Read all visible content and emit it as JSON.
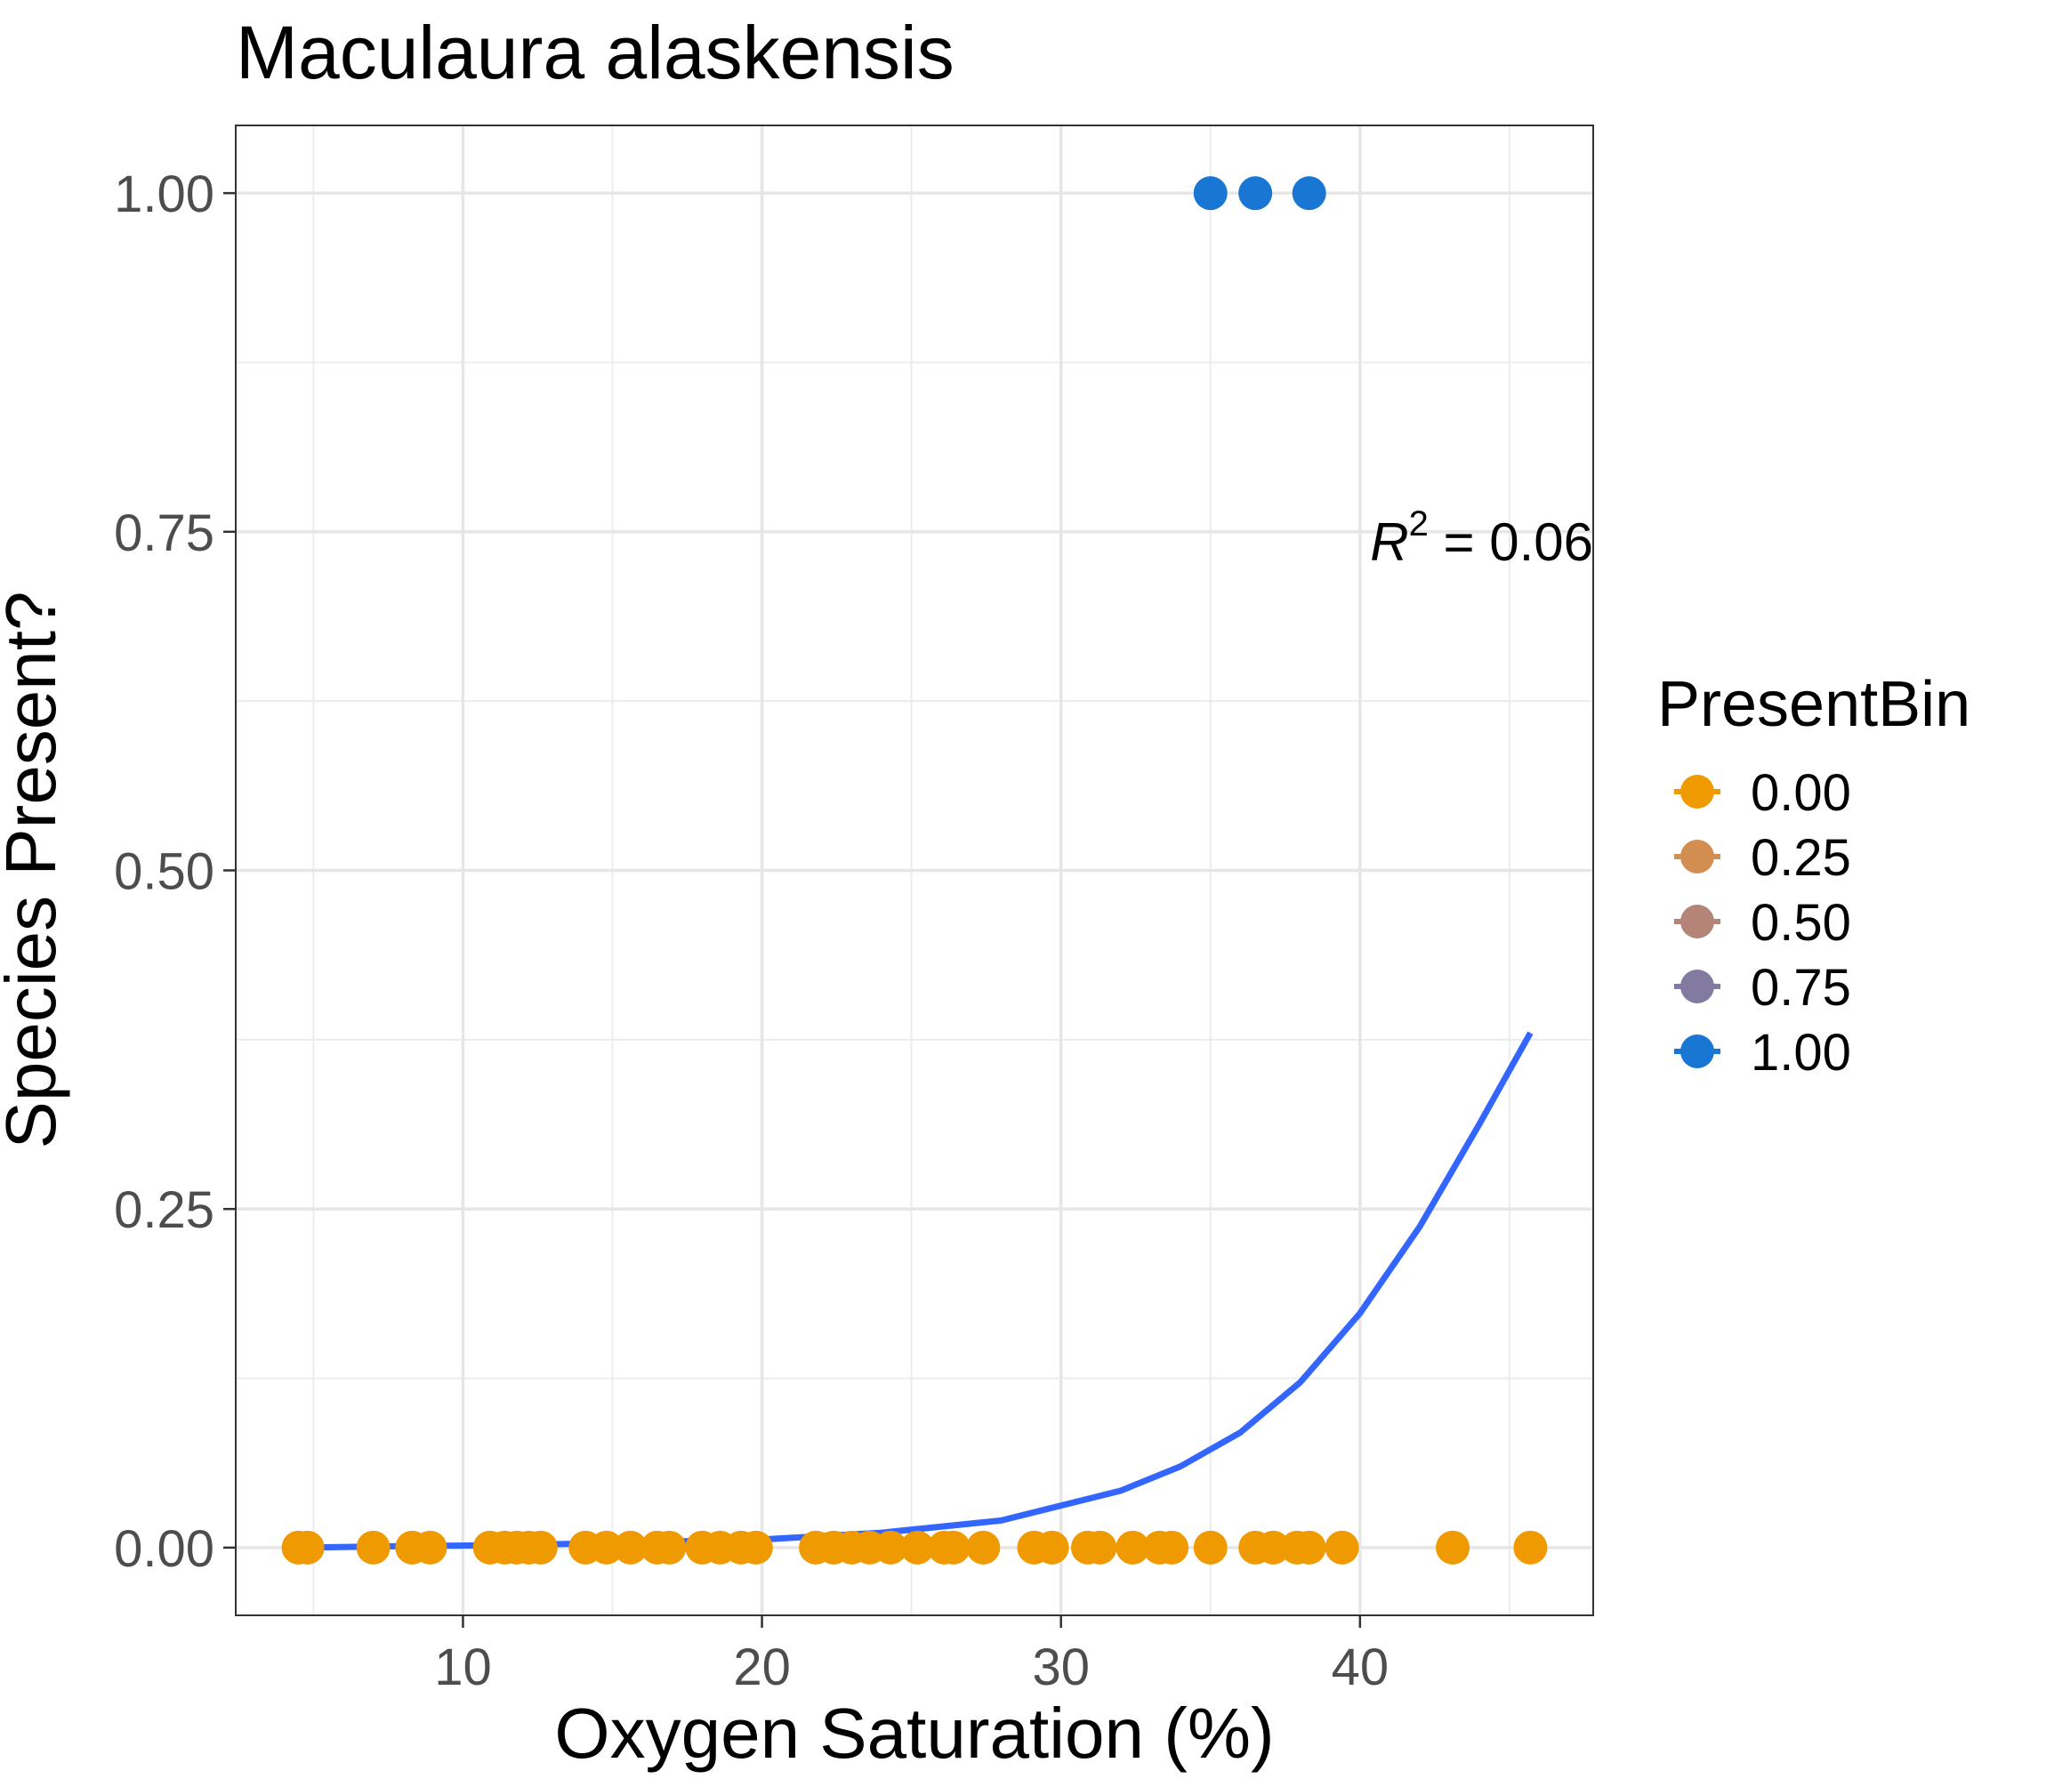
{
  "chart_data": {
    "type": "scatter",
    "title": "Maculaura alaskensis",
    "xlabel": "Oxygen Saturation (%)",
    "ylabel": "Species Present?",
    "xlim": [
      2.4,
      47.8
    ],
    "ylim": [
      -0.05,
      1.05
    ],
    "x_ticks": [
      10,
      20,
      30,
      40
    ],
    "y_ticks": [
      0.0,
      0.25,
      0.5,
      0.75,
      1.0
    ],
    "x_tick_labels": [
      "10",
      "20",
      "30",
      "40"
    ],
    "y_tick_labels": [
      "0.00",
      "0.25",
      "0.50",
      "0.75",
      "1.00"
    ],
    "grid": true,
    "annotation": {
      "base": "R",
      "superscript": "2",
      "text": " = 0.06",
      "x": 47.8,
      "y": 0.74
    },
    "legend": {
      "title": "PresentBin",
      "placement": "right",
      "entries": [
        {
          "label": "0.00",
          "color": "#EF9A00"
        },
        {
          "label": "0.25",
          "color": "#D28E50"
        },
        {
          "label": "0.50",
          "color": "#B48478"
        },
        {
          "label": "0.75",
          "color": "#827AA0"
        },
        {
          "label": "1.00",
          "color": "#1976D2"
        }
      ]
    },
    "colors": {
      "absent": "#EF9A00",
      "present": "#1976D2",
      "fit_line": "#3366FF"
    },
    "series": [
      {
        "name": "0.00",
        "color": "#EF9A00",
        "x": [
          4.5,
          4.8,
          7.0,
          8.3,
          8.9,
          10.9,
          11.4,
          11.8,
          12.2,
          12.6,
          14.1,
          14.8,
          15.6,
          16.5,
          16.9,
          18.0,
          18.6,
          19.3,
          19.8,
          21.8,
          22.4,
          23.0,
          23.6,
          24.3,
          25.2,
          26.1,
          26.4,
          27.4,
          29.1,
          29.7,
          30.9,
          31.3,
          32.4,
          33.3,
          33.7,
          35.0,
          36.5,
          37.1,
          37.9,
          38.3,
          39.4,
          43.1,
          45.7
        ],
        "y": [
          0,
          0,
          0,
          0,
          0,
          0,
          0,
          0,
          0,
          0,
          0,
          0,
          0,
          0,
          0,
          0,
          0,
          0,
          0,
          0,
          0,
          0,
          0,
          0,
          0,
          0,
          0,
          0,
          0,
          0,
          0,
          0,
          0,
          0,
          0,
          0,
          0,
          0,
          0,
          0,
          0,
          0,
          0
        ]
      },
      {
        "name": "1.00",
        "color": "#1976D2",
        "x": [
          35.0,
          36.5,
          38.3
        ],
        "y": [
          1,
          1,
          1
        ]
      }
    ],
    "fit": {
      "type": "logistic",
      "color": "#3366FF",
      "x": [
        4.6,
        8,
        12,
        16,
        20,
        24,
        28,
        32,
        34,
        36,
        38,
        40,
        42,
        44,
        45.7
      ],
      "y": [
        0.0,
        0.001,
        0.002,
        0.004,
        0.006,
        0.011,
        0.02,
        0.042,
        0.06,
        0.085,
        0.122,
        0.173,
        0.237,
        0.313,
        0.38
      ]
    }
  }
}
